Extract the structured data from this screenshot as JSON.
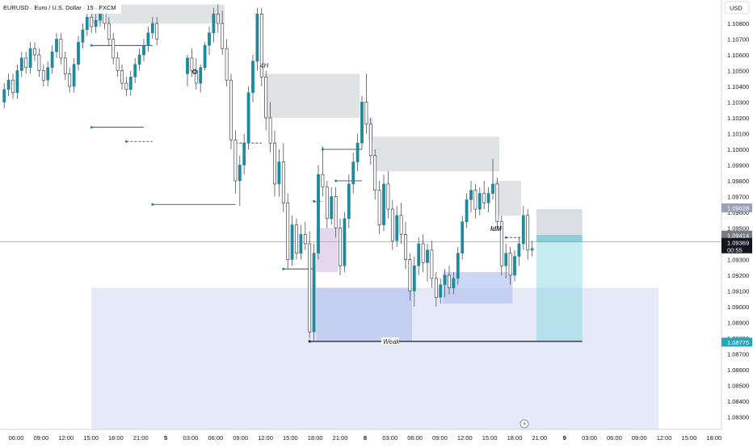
{
  "chart_data": {
    "type": "candlestick",
    "title": "EURUSD · Euro / U.S. Dollar · 15 · FXCM",
    "currency": "USD",
    "ylim": [
      1.082,
      1.109
    ],
    "yticks": [
      "1.10800",
      "1.10700",
      "1.10600",
      "1.10500",
      "1.10400",
      "1.10300",
      "1.10200",
      "1.10100",
      "1.10000",
      "1.09900",
      "1.09800",
      "1.09700",
      "1.09600",
      "1.09500",
      "1.09400",
      "1.09300",
      "1.09200",
      "1.09100",
      "1.09000",
      "1.08900",
      "1.08800",
      "1.08700",
      "1.08600",
      "1.08500",
      "1.08400",
      "1.08300"
    ],
    "xticks": [
      "06:00",
      "09:00",
      "12:00",
      "15:00",
      "18:00",
      "21:00",
      "5",
      "03:00",
      "06:00",
      "09:00",
      "12:00",
      "15:00",
      "18:00",
      "21:00",
      "8",
      "03:00",
      "06:00",
      "09:00",
      "12:00",
      "15:00",
      "18:00",
      "21:00",
      "9",
      "03:00",
      "06:00",
      "09:00",
      "12:00",
      "15:00",
      "18:00"
    ],
    "bold_xticks": [
      "5",
      "8",
      "9"
    ],
    "price_labels": {
      "upper": "1.09628",
      "current": "1.09414",
      "last": "1.09369",
      "countdown": "00:55",
      "lower": "1.08775"
    },
    "annotations": {
      "timeframe": "4H",
      "idm": "IdM",
      "weak": "Weak",
      "recycle": "♻"
    },
    "candles": [
      {
        "t": 0,
        "o": 1.1048,
        "h": 1.106,
        "l": 1.104,
        "c": 1.1058
      },
      {
        "t": 1,
        "o": 1.1058,
        "h": 1.1064,
        "l": 1.1046,
        "c": 1.105
      },
      {
        "t": 2,
        "o": 1.105,
        "h": 1.1058,
        "l": 1.1038,
        "c": 1.1042
      },
      {
        "t": 3,
        "o": 1.1042,
        "h": 1.1054,
        "l": 1.1036,
        "c": 1.1052
      },
      {
        "t": 4,
        "o": 1.1052,
        "h": 1.1068,
        "l": 1.105,
        "c": 1.1066
      },
      {
        "t": 5,
        "o": 1.1066,
        "h": 1.1078,
        "l": 1.106,
        "c": 1.1074
      },
      {
        "t": 6,
        "o": 1.1074,
        "h": 1.109,
        "l": 1.1068,
        "c": 1.1086
      },
      {
        "t": 7,
        "o": 1.1086,
        "h": 1.1092,
        "l": 1.1074,
        "c": 1.108
      },
      {
        "t": 8,
        "o": 1.108,
        "h": 1.1088,
        "l": 1.106,
        "c": 1.1064
      },
      {
        "t": 9,
        "o": 1.1064,
        "h": 1.107,
        "l": 1.104,
        "c": 1.1044
      },
      {
        "t": 10,
        "o": 1.1044,
        "h": 1.1048,
        "l": 1.1,
        "c": 1.1006
      },
      {
        "t": 11,
        "o": 1.1006,
        "h": 1.1012,
        "l": 1.0972,
        "c": 1.098
      },
      {
        "t": 12,
        "o": 1.098,
        "h": 1.0996,
        "l": 1.0964,
        "c": 1.099
      },
      {
        "t": 13,
        "o": 1.099,
        "h": 1.101,
        "l": 1.0984,
        "c": 1.1004
      },
      {
        "t": 14,
        "o": 1.1004,
        "h": 1.104,
        "l": 1.1,
        "c": 1.1036
      },
      {
        "t": 15,
        "o": 1.1036,
        "h": 1.106,
        "l": 1.103,
        "c": 1.1056
      },
      {
        "t": 16,
        "o": 1.1056,
        "h": 1.109,
        "l": 1.105,
        "c": 1.1086
      },
      {
        "t": 17,
        "o": 1.1086,
        "h": 1.109,
        "l": 1.104,
        "c": 1.1046
      },
      {
        "t": 18,
        "o": 1.1046,
        "h": 1.105,
        "l": 1.1012,
        "c": 1.102
      },
      {
        "t": 19,
        "o": 1.102,
        "h": 1.103,
        "l": 1.0998,
        "c": 1.1004
      },
      {
        "t": 20,
        "o": 1.1004,
        "h": 1.1012,
        "l": 1.097,
        "c": 1.0978
      },
      {
        "t": 21,
        "o": 1.0978,
        "h": 1.1,
        "l": 1.097,
        "c": 1.0992
      },
      {
        "t": 22,
        "o": 1.0992,
        "h": 1.1004,
        "l": 1.096,
        "c": 1.0966
      },
      {
        "t": 23,
        "o": 1.0966,
        "h": 1.0972,
        "l": 1.0924,
        "c": 1.093
      },
      {
        "t": 24,
        "o": 1.093,
        "h": 1.0958,
        "l": 1.0926,
        "c": 1.0952
      },
      {
        "t": 25,
        "o": 1.0952,
        "h": 1.0956,
        "l": 1.093,
        "c": 1.0934
      },
      {
        "t": 26,
        "o": 1.0934,
        "h": 1.0952,
        "l": 1.093,
        "c": 1.0946
      },
      {
        "t": 27,
        "o": 1.0946,
        "h": 1.0954,
        "l": 1.0936,
        "c": 1.094
      },
      {
        "t": 28,
        "o": 1.094,
        "h": 1.0948,
        "l": 1.088,
        "c": 1.0884
      },
      {
        "t": 29,
        "o": 1.0884,
        "h": 1.094,
        "l": 1.0878,
        "c": 1.0934
      },
      {
        "t": 30,
        "o": 1.0934,
        "h": 1.099,
        "l": 1.093,
        "c": 1.0984
      },
      {
        "t": 31,
        "o": 1.0984,
        "h": 1.1002,
        "l": 1.097,
        "c": 1.0976
      },
      {
        "t": 32,
        "o": 1.0976,
        "h": 1.098,
        "l": 1.095,
        "c": 1.0956
      },
      {
        "t": 33,
        "o": 1.0956,
        "h": 1.0976,
        "l": 1.0952,
        "c": 1.097
      },
      {
        "t": 34,
        "o": 1.097,
        "h": 1.0976,
        "l": 1.0944,
        "c": 1.095
      },
      {
        "t": 35,
        "o": 1.095,
        "h": 1.0956,
        "l": 1.092,
        "c": 1.0926
      },
      {
        "t": 36,
        "o": 1.0926,
        "h": 1.096,
        "l": 1.0922,
        "c": 1.0956
      },
      {
        "t": 37,
        "o": 1.0956,
        "h": 1.0984,
        "l": 1.095,
        "c": 1.0978
      },
      {
        "t": 38,
        "o": 1.0978,
        "h": 1.0998,
        "l": 1.0972,
        "c": 1.0992
      },
      {
        "t": 39,
        "o": 1.0992,
        "h": 1.101,
        "l": 1.0986,
        "c": 1.1004
      },
      {
        "t": 40,
        "o": 1.1004,
        "h": 1.1034,
        "l": 1.1,
        "c": 1.103
      },
      {
        "t": 41,
        "o": 1.103,
        "h": 1.1048,
        "l": 1.101,
        "c": 1.1016
      },
      {
        "t": 42,
        "o": 1.1016,
        "h": 1.102,
        "l": 1.099,
        "c": 1.0996
      },
      {
        "t": 43,
        "o": 1.0996,
        "h": 1.1,
        "l": 1.0968,
        "c": 1.0974
      },
      {
        "t": 44,
        "o": 1.0974,
        "h": 1.098,
        "l": 1.0946,
        "c": 1.0952
      },
      {
        "t": 45,
        "o": 1.0952,
        "h": 1.0984,
        "l": 1.0948,
        "c": 1.0978
      },
      {
        "t": 46,
        "o": 1.0978,
        "h": 1.0986,
        "l": 1.0956,
        "c": 1.0962
      },
      {
        "t": 47,
        "o": 1.0962,
        "h": 1.0968,
        "l": 1.0936,
        "c": 1.0942
      },
      {
        "t": 48,
        "o": 1.0942,
        "h": 1.0964,
        "l": 1.0938,
        "c": 1.0958
      },
      {
        "t": 49,
        "o": 1.0958,
        "h": 1.0966,
        "l": 1.094,
        "c": 1.0946
      },
      {
        "t": 50,
        "o": 1.0946,
        "h": 1.0954,
        "l": 1.0924,
        "c": 1.093
      },
      {
        "t": 51,
        "o": 1.093,
        "h": 1.0934,
        "l": 1.0904,
        "c": 1.091
      },
      {
        "t": 52,
        "o": 1.091,
        "h": 1.0932,
        "l": 1.09,
        "c": 1.0926
      },
      {
        "t": 53,
        "o": 1.0926,
        "h": 1.0944,
        "l": 1.092,
        "c": 1.094
      },
      {
        "t": 54,
        "o": 1.094,
        "h": 1.0946,
        "l": 1.0922,
        "c": 1.0928
      },
      {
        "t": 55,
        "o": 1.0928,
        "h": 1.094,
        "l": 1.0916,
        "c": 1.0936
      },
      {
        "t": 56,
        "o": 1.0936,
        "h": 1.0942,
        "l": 1.0912,
        "c": 1.0918
      },
      {
        "t": 57,
        "o": 1.0918,
        "h": 1.0922,
        "l": 1.09,
        "c": 1.0906
      },
      {
        "t": 58,
        "o": 1.0906,
        "h": 1.0918,
        "l": 1.0902,
        "c": 1.0914
      },
      {
        "t": 59,
        "o": 1.0914,
        "h": 1.0924,
        "l": 1.0906,
        "c": 1.092
      },
      {
        "t": 60,
        "o": 1.092,
        "h": 1.0926,
        "l": 1.0908,
        "c": 1.0912
      },
      {
        "t": 61,
        "o": 1.0912,
        "h": 1.0922,
        "l": 1.0908,
        "c": 1.0918
      },
      {
        "t": 62,
        "o": 1.0918,
        "h": 1.0938,
        "l": 1.0914,
        "c": 1.0934
      },
      {
        "t": 63,
        "o": 1.0934,
        "h": 1.0958,
        "l": 1.093,
        "c": 1.0954
      },
      {
        "t": 64,
        "o": 1.0954,
        "h": 1.0972,
        "l": 1.095,
        "c": 1.0968
      },
      {
        "t": 65,
        "o": 1.0968,
        "h": 1.098,
        "l": 1.096,
        "c": 1.0974
      },
      {
        "t": 66,
        "o": 1.0974,
        "h": 1.0978,
        "l": 1.0956,
        "c": 1.0962
      },
      {
        "t": 67,
        "o": 1.0962,
        "h": 1.0976,
        "l": 1.0958,
        "c": 1.0972
      },
      {
        "t": 68,
        "o": 1.0972,
        "h": 1.098,
        "l": 1.0962,
        "c": 1.0966
      },
      {
        "t": 69,
        "o": 1.0966,
        "h": 1.0976,
        "l": 1.096,
        "c": 1.0972
      },
      {
        "t": 70,
        "o": 1.0972,
        "h": 1.0994,
        "l": 1.0968,
        "c": 1.0978
      },
      {
        "t": 71,
        "o": 1.0978,
        "h": 1.0982,
        "l": 1.095,
        "c": 1.0954
      },
      {
        "t": 72,
        "o": 1.0954,
        "h": 1.0958,
        "l": 1.092,
        "c": 1.0926
      },
      {
        "t": 73,
        "o": 1.0926,
        "h": 1.094,
        "l": 1.0918,
        "c": 1.0934
      },
      {
        "t": 74,
        "o": 1.0934,
        "h": 1.0938,
        "l": 1.0914,
        "c": 1.092
      },
      {
        "t": 75,
        "o": 1.092,
        "h": 1.0936,
        "l": 1.0916,
        "c": 1.0932
      },
      {
        "t": 76,
        "o": 1.0932,
        "h": 1.0944,
        "l": 1.0926,
        "c": 1.094
      },
      {
        "t": 77,
        "o": 1.094,
        "h": 1.0964,
        "l": 1.0936,
        "c": 1.0958
      },
      {
        "t": 78,
        "o": 1.0958,
        "h": 1.0962,
        "l": 1.093,
        "c": 1.0936
      },
      {
        "t": 79,
        "o": 1.0936,
        "h": 1.0942,
        "l": 1.0932,
        "c": 1.0937
      }
    ],
    "zones": [
      {
        "type": "supply",
        "x0": -22,
        "x1": 8.5,
        "y0": 1.108,
        "y1": 1.1092
      },
      {
        "type": "supply",
        "x0": 17.5,
        "x1": 20.5,
        "y0": 1.102,
        "y1": 1.1048
      },
      {
        "type": "supply",
        "x0": 20.5,
        "x1": 39.5,
        "y0": 1.102,
        "y1": 1.1048
      },
      {
        "type": "supply",
        "x0": 41.5,
        "x1": 42.5,
        "y0": 1.1006,
        "y1": 1.102
      },
      {
        "type": "supply",
        "x0": 42.5,
        "x1": 71.5,
        "y0": 1.0986,
        "y1": 1.1008
      },
      {
        "type": "supply",
        "x0": 70.5,
        "x1": 76.5,
        "y0": 1.0958,
        "y1": 1.098
      },
      {
        "type": "purple",
        "x0": 29.5,
        "x1": 34.5,
        "y0": 1.0922,
        "y1": 1.095
      },
      {
        "type": "demand",
        "x0": 29.5,
        "x1": 51.5,
        "y0": 1.0878,
        "y1": 1.0912
      },
      {
        "type": "demand",
        "x0": 58.5,
        "x1": 74.5,
        "y0": 1.0902,
        "y1": 1.0922
      },
      {
        "type": "demand-wide",
        "x0": -22,
        "x1": 108,
        "y0": 1.0822,
        "y1": 1.0912
      },
      {
        "type": "short-risk",
        "x0": 80,
        "x1": 90.5,
        "y0": 1.0941,
        "y1": 1.0962
      },
      {
        "type": "short-target",
        "x0": 80,
        "x1": 90.5,
        "y0": 1.0878,
        "y1": 1.0941
      }
    ],
    "lines": [
      {
        "x0": -22,
        "x1": -8,
        "y": 1.1066,
        "dashed": false
      },
      {
        "x0": -22,
        "x1": -10,
        "y": 1.1014,
        "dashed": false
      },
      {
        "x0": -14,
        "x1": -8,
        "y": 1.1005,
        "dashed": true
      },
      {
        "x0": -8,
        "x1": 11,
        "y": 1.0965,
        "dashed": false
      },
      {
        "x0": 11,
        "x1": 17,
        "y": 1.1004,
        "dashed": true
      },
      {
        "x0": 22,
        "x1": 29,
        "y": 1.0924,
        "dashed": false
      },
      {
        "x0": 29,
        "x1": 31,
        "y": 1.0967,
        "dashed": true
      },
      {
        "x0": 31,
        "x1": 40,
        "y": 1.1,
        "dashed": false
      },
      {
        "x0": 34,
        "x1": 40,
        "y": 1.098,
        "dashed": false
      },
      {
        "x0": 73,
        "x1": 77,
        "y": 1.0944,
        "dashed": true
      },
      {
        "x0": 28,
        "x1": 90.5,
        "y": 1.0878,
        "dashed": false,
        "weak": true
      }
    ]
  }
}
